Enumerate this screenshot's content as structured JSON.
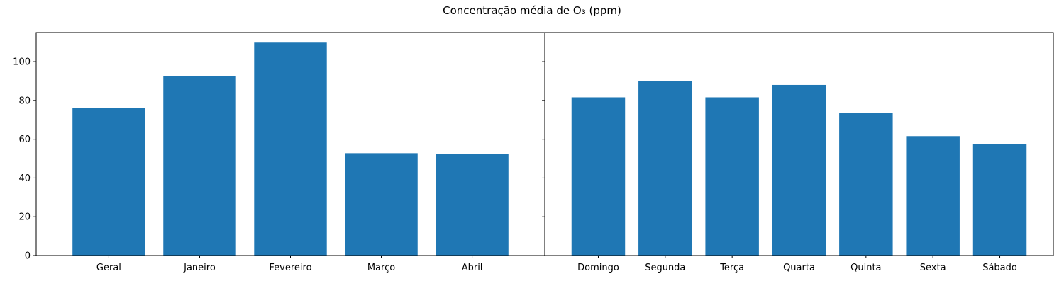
{
  "figure": {
    "title": "Concentração média de O₃ (ppm)"
  },
  "chart_data": [
    {
      "type": "bar",
      "categories": [
        "Geral",
        "Janeiro",
        "Fevereiro",
        "Março",
        "Abril"
      ],
      "values": [
        76.2,
        92.5,
        109.8,
        52.8,
        52.4
      ],
      "color": "#1f77b4",
      "ylim": [
        0,
        115
      ],
      "yticks": [
        0,
        20,
        40,
        60,
        80,
        100
      ],
      "title": "",
      "xlabel": "",
      "ylabel": ""
    },
    {
      "type": "bar",
      "categories": [
        "Domingo",
        "Segunda",
        "Terça",
        "Quarta",
        "Quinta",
        "Sexta",
        "Sábado"
      ],
      "values": [
        81.6,
        90.0,
        81.6,
        88.0,
        73.6,
        61.6,
        57.6
      ],
      "color": "#1f77b4",
      "ylim": [
        0,
        115
      ],
      "yticks": [
        0,
        20,
        40,
        60,
        80,
        100
      ],
      "ytick_labels_shown": false,
      "title": "",
      "xlabel": "",
      "ylabel": ""
    }
  ]
}
